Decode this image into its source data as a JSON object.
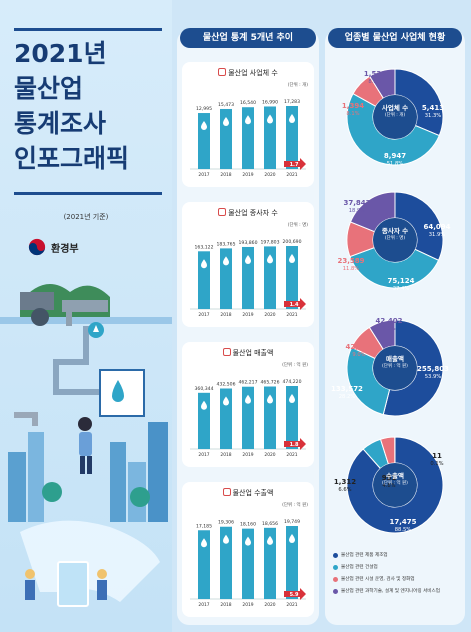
{
  "left": {
    "title_lines": [
      "2021년",
      "물산업",
      "통계조사",
      "인포그래픽"
    ],
    "basis": "(2021년 기준)",
    "ministry": "환경부"
  },
  "middle": {
    "header": "물산업 통계 5개년 추이",
    "charts": [
      {
        "title": "물산업 사업체 수",
        "unit": "(단위 : 개)"
      },
      {
        "title": "물산업 종사자 수",
        "unit": "(단위 : 명)"
      },
      {
        "title": "물산업 매출액",
        "unit": "(단위 : 억 원)"
      },
      {
        "title": "물산업 수출액",
        "unit": "(단위 : 억 원)"
      }
    ]
  },
  "right": {
    "header": "업종별 물산업 사업체 현황",
    "donuts": [
      {
        "center": "사업체 수",
        "center_sub": "(단위 : 개)"
      },
      {
        "center": "종사자 수",
        "center_sub": "(단위 : 명)"
      },
      {
        "center": "매출액",
        "center_sub": "(단위 : 억 원)"
      },
      {
        "center": "수출액",
        "center_sub": "(단위 : 억 원)"
      }
    ],
    "legend": [
      {
        "label": "물산업 관련 제품 제조업",
        "color": "#1d4d9c"
      },
      {
        "label": "물산업 관련 건설업",
        "color": "#2fa5c8"
      },
      {
        "label": "물산업 관련 시설 운영, 검사 및 정화업",
        "color": "#e8727a"
      },
      {
        "label": "물산업 관련 과학기술, 설계 및 엔지니어링 서비스업",
        "color": "#6a57a8"
      }
    ]
  },
  "colors": {
    "navy": "#1d4d8f",
    "bar": "#2fa5c8",
    "red": "#d8323a",
    "bg": "#cfe6f7"
  },
  "chart_data": [
    {
      "type": "bar",
      "title": "물산업 사업체 수",
      "categories": [
        "2017",
        "2018",
        "2019",
        "2020",
        "2021"
      ],
      "values": [
        12995,
        15473,
        16540,
        16990,
        17283
      ],
      "value_labels": [
        "12,995",
        "15,473",
        "16,540",
        "16,990",
        "17,283"
      ],
      "change_label": "1.7"
    },
    {
      "type": "bar",
      "title": "물산업 종사자 수",
      "categories": [
        "2017",
        "2018",
        "2019",
        "2020",
        "2021"
      ],
      "values": [
        163122,
        183765,
        193860,
        197803,
        200690
      ],
      "value_labels": [
        "163,122",
        "183,765",
        "193,860",
        "197,803",
        "200,690"
      ],
      "change_label": "1.4"
    },
    {
      "type": "bar",
      "title": "물산업 매출액",
      "categories": [
        "2017",
        "2018",
        "2019",
        "2020",
        "2021"
      ],
      "values": [
        360344,
        432506,
        462217,
        465726,
        474220
      ],
      "value_labels": [
        "360,344",
        "432,506",
        "462,217",
        "465,726",
        "474,220"
      ],
      "change_label": "1.8"
    },
    {
      "type": "bar",
      "title": "물산업 수출액",
      "categories": [
        "2017",
        "2018",
        "2019",
        "2020",
        "2021"
      ],
      "values": [
        17185,
        19306,
        18160,
        18656,
        19749
      ],
      "value_labels": [
        "17,185",
        "19,306",
        "18,160",
        "18,656",
        "19,749"
      ],
      "change_label": "5.9"
    },
    {
      "type": "pie",
      "title": "사업체 수",
      "slices": [
        {
          "value": 5413,
          "label": "5,413",
          "pct": "31.3%",
          "color": "#1d4d9c"
        },
        {
          "value": 8947,
          "label": "8,947",
          "pct": "51.8%",
          "color": "#2fa5c8"
        },
        {
          "value": 1394,
          "label": "1,394",
          "pct": "8.1%",
          "color": "#e8727a"
        },
        {
          "value": 1529,
          "label": "1,529",
          "pct": "8.8%",
          "color": "#6a57a8"
        }
      ]
    },
    {
      "type": "pie",
      "title": "종사자 수",
      "slices": [
        {
          "value": 64094,
          "label": "64,094",
          "pct": "31.9%",
          "color": "#1d4d9c"
        },
        {
          "value": 75124,
          "label": "75,124",
          "pct": "37.4%",
          "color": "#2fa5c8"
        },
        {
          "value": 23589,
          "label": "23,589",
          "pct": "11.8%",
          "color": "#e8727a"
        },
        {
          "value": 37842,
          "label": "37,842",
          "pct": "18.9%",
          "color": "#6a57a8"
        }
      ]
    },
    {
      "type": "pie",
      "title": "매출액",
      "slices": [
        {
          "value": 255803,
          "label": "255,803",
          "pct": "53.9%",
          "color": "#1d4d9c"
        },
        {
          "value": 133572,
          "label": "133,572",
          "pct": "28.2%",
          "color": "#2fa5c8"
        },
        {
          "value": 42444,
          "label": "42,444",
          "pct": "9.0%",
          "color": "#e8727a"
        },
        {
          "value": 42402,
          "label": "42,402",
          "pct": "8.9%",
          "color": "#6a57a8"
        }
      ]
    },
    {
      "type": "pie",
      "title": "수출액",
      "slices": [
        {
          "value": 17475,
          "label": "17,475",
          "pct": "88.5%",
          "color": "#1d4d9c"
        },
        {
          "value": 1312,
          "label": "1,312",
          "pct": "6.6%",
          "color": "#2fa5c8"
        },
        {
          "value": 951,
          "label": "951",
          "pct": "4.8%",
          "color": "#e8727a"
        },
        {
          "value": 11,
          "label": "11",
          "pct": "0.1%",
          "color": "#6a57a8"
        }
      ]
    }
  ]
}
